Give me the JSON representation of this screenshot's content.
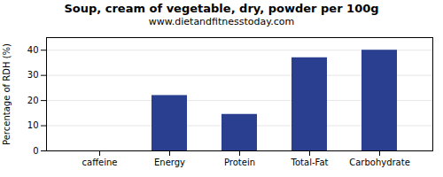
{
  "chart_data": {
    "type": "bar",
    "title": "Soup, cream of vegetable, dry, powder per 100g",
    "subtitle": "www.dietandfitnesstoday.com",
    "categories": [
      "caffeine",
      "Energy",
      "Protein",
      "Total-Fat",
      "Carbohydrate"
    ],
    "values": [
      0,
      22,
      14.5,
      37,
      40
    ],
    "color": "#2a3f8f",
    "ylabel": "Percentage of RDH (%)",
    "ylim": [
      0,
      45
    ],
    "yticks": [
      0,
      10,
      20,
      30,
      40
    ],
    "grid": true
  }
}
